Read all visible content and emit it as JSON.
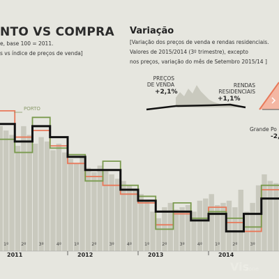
{
  "header": {
    "title": "NTO VS COMPRA",
    "subtitle_1": "e, base 100 = 2011.",
    "subtitle_2": "s vs índice de preços de venda]"
  },
  "variation": {
    "title": "Variação",
    "desc_1": "[Variação dos preços de venda e rendas residenciais.",
    "desc_2": "Valores de 2015/2014 (3º trimestre), excepto",
    "desc_3": "nos preços, variação do mês de Setembro 2015/14 ]",
    "precos_label_1": "PREÇOS",
    "precos_label_2": "DE VENDA",
    "precos_value": "+2,1%",
    "rendas_label_1": "RENDAS",
    "rendas_label_2": "RESIDENCIAIS",
    "rendas_value": "+1,1%",
    "grande_label": "Grande Po",
    "grande_value": "-2,"
  },
  "colors": {
    "background": "#e6e6df",
    "bars": "#c9c9be",
    "black_series": "#111111",
    "green_series": "#7a9a4e",
    "red_series": "#e8795a"
  },
  "chart_data": {
    "type": "line",
    "series_label": "PORTO",
    "years": [
      "2011",
      "2012",
      "2013",
      "2014"
    ],
    "quarter_labels": [
      "1º",
      "2º",
      "3º",
      "4º",
      "1º",
      "2º",
      "3º",
      "4º",
      "1º",
      "2º",
      "3º",
      "4º",
      "1º",
      "2º",
      "3º"
    ],
    "months": [
      "2011-01",
      "2011-02",
      "2011-03",
      "2011-04",
      "2011-05",
      "2011-06",
      "2011-07",
      "2011-08",
      "2011-09",
      "2011-10",
      "2011-11",
      "2011-12",
      "2012-01",
      "2012-02",
      "2012-03",
      "2012-04",
      "2012-05",
      "2012-06",
      "2012-07",
      "2012-08",
      "2012-09",
      "2012-10",
      "2012-11",
      "2012-12",
      "2013-01",
      "2013-02",
      "2013-03",
      "2013-04",
      "2013-05",
      "2013-06",
      "2013-07",
      "2013-08",
      "2013-09",
      "2013-10",
      "2013-11",
      "2013-12",
      "2014-01",
      "2014-02",
      "2014-03",
      "2014-04",
      "2014-05",
      "2014-06",
      "2014-07",
      "2014-08",
      "2014-09",
      "2014-10",
      "2014-11",
      "2014-12"
    ],
    "bars": [
      97,
      95,
      93,
      88,
      97,
      93,
      89,
      92,
      90,
      86,
      89,
      85,
      82,
      80,
      83,
      78,
      76,
      79,
      77,
      75,
      73,
      72,
      70,
      68,
      66,
      63,
      58,
      55,
      60,
      62,
      59,
      60,
      61,
      58,
      63,
      64,
      66,
      61,
      62,
      63,
      60,
      68,
      58,
      62,
      70,
      75,
      72,
      71
    ],
    "black": [
      98,
      98,
      98,
      90,
      90,
      90,
      97,
      97,
      97,
      92,
      92,
      92,
      83,
      83,
      83,
      77,
      77,
      77,
      77,
      77,
      77,
      68,
      68,
      68,
      63,
      63,
      63,
      58,
      58,
      58,
      58,
      58,
      58,
      54,
      54,
      54,
      57,
      57,
      57,
      49,
      49,
      49,
      57,
      57,
      57,
      64,
      64,
      64
    ],
    "green": [
      91,
      91,
      91,
      85,
      85,
      85,
      101,
      101,
      101,
      87,
      87,
      87,
      84,
      84,
      84,
      72,
      72,
      72,
      81,
      81,
      81,
      70,
      70,
      70,
      65,
      65,
      65,
      50,
      50,
      50,
      62,
      62,
      62,
      55,
      55,
      55,
      58,
      58,
      58,
      55,
      55,
      55,
      51,
      51,
      51,
      70,
      70,
      70
    ],
    "red": [
      104,
      104,
      104,
      92,
      92,
      92,
      95,
      95,
      95,
      88,
      88,
      88,
      80,
      80,
      80,
      74,
      74,
      74,
      70,
      70,
      70,
      66,
      66,
      66,
      62,
      62,
      62,
      52,
      52,
      52,
      57,
      57,
      57,
      54,
      54,
      54,
      60,
      60,
      60,
      53,
      53,
      53,
      49,
      49,
      49,
      68,
      68,
      68
    ],
    "ylim": [
      40,
      110
    ]
  }
}
